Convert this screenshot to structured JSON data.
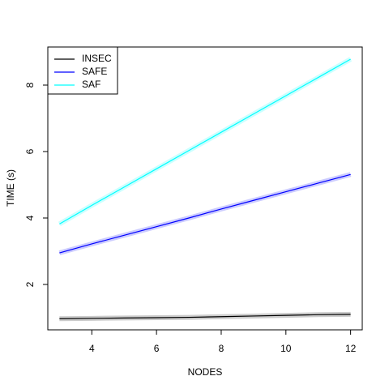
{
  "chart_data": {
    "type": "line",
    "xlabel": "NODES",
    "ylabel": "TIME (s)",
    "x": [
      3,
      4,
      5,
      6,
      7,
      8,
      9,
      10,
      11,
      12
    ],
    "series": [
      {
        "name": "INSEC",
        "color": "#000000",
        "values": [
          0.97,
          0.98,
          0.99,
          1.0,
          1.01,
          1.03,
          1.05,
          1.07,
          1.09,
          1.1
        ]
      },
      {
        "name": "SAFE",
        "color": "#0000ff",
        "values": [
          2.95,
          3.22,
          3.48,
          3.74,
          4.0,
          4.27,
          4.53,
          4.79,
          5.05,
          5.31
        ]
      },
      {
        "name": "SAF",
        "color": "#00ffff",
        "values": [
          3.82,
          4.38,
          4.93,
          5.48,
          6.03,
          6.58,
          7.13,
          7.68,
          8.23,
          8.78
        ]
      }
    ],
    "xlim": [
      2.64,
      12.36
    ],
    "xticks": [
      4,
      6,
      8,
      10,
      12
    ],
    "ylim": [
      0.634,
      9.146
    ],
    "yticks": [
      2,
      4,
      6,
      8
    ],
    "legend": "top-left"
  }
}
